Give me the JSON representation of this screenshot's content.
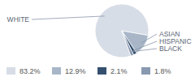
{
  "chart_data": {
    "type": "pie",
    "categories": [
      "WHITE",
      "ASIAN",
      "HISPANIC",
      "BLACK"
    ],
    "values": [
      83.2,
      12.9,
      2.1,
      1.8
    ],
    "value_labels": [
      "83.2%",
      "12.9%",
      "2.1%",
      "1.8%"
    ],
    "colors": [
      "#d7dde6",
      "#a8b6c8",
      "#34506f",
      "#8899b0"
    ]
  }
}
